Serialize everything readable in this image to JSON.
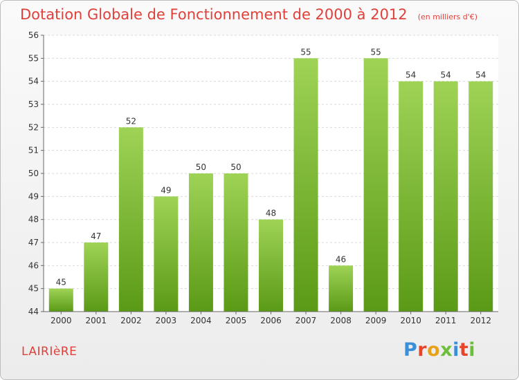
{
  "chart_data": {
    "type": "bar",
    "title": "Dotation Globale de Fonctionnement de 2000 à 2012",
    "subtitle": "(en milliers d'€)",
    "categories": [
      "2000",
      "2001",
      "2002",
      "2003",
      "2004",
      "2005",
      "2006",
      "2007",
      "2008",
      "2009",
      "2010",
      "2011",
      "2012"
    ],
    "values": [
      45,
      47,
      52,
      49,
      50,
      50,
      48,
      55,
      46,
      55,
      54,
      54,
      54
    ],
    "ylim": [
      44,
      56
    ],
    "yticks": [
      44,
      45,
      46,
      47,
      48,
      49,
      50,
      51,
      52,
      53,
      54,
      55,
      56
    ],
    "grid": true,
    "bar_color": "#7cc13a",
    "data_labels": true
  },
  "footer": {
    "town_name": "LAIRIèRE",
    "logo_text": "Proxiti"
  },
  "colors": {
    "title": "#e0403a",
    "logo": [
      "#3a8fd8",
      "#e8442a",
      "#e8a21a",
      "#6cbf3a",
      "#3a8fd8",
      "#e8442a",
      "#6cbf3a"
    ]
  }
}
